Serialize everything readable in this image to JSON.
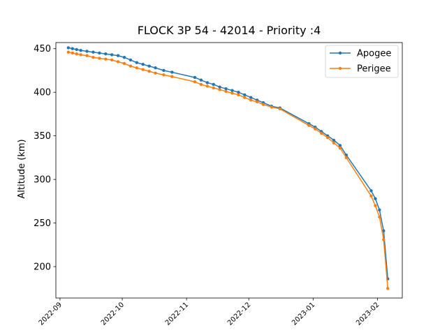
{
  "chart_data": {
    "type": "line",
    "title": "FLOCK 3P 54 - 42014 - Priority :4",
    "xlabel": "",
    "ylabel": "Altitude (km)",
    "xlim": [
      "2022-08-30",
      "2023-02-13"
    ],
    "ylim": [
      164,
      457
    ],
    "x_ticks": [
      "2022-09",
      "2022-10",
      "2022-11",
      "2022-12",
      "2023-01",
      "2023-02"
    ],
    "y_ticks": [
      200,
      250,
      300,
      350,
      400,
      450
    ],
    "legend": "top-right",
    "grid": false,
    "series": [
      {
        "name": "Apogee",
        "color": "#1f77b4",
        "marker": "circle",
        "points": [
          [
            "2022-09-05",
            451
          ],
          [
            "2022-09-07",
            450
          ],
          [
            "2022-09-09",
            449
          ],
          [
            "2022-09-11",
            448
          ],
          [
            "2022-09-14",
            447
          ],
          [
            "2022-09-17",
            446
          ],
          [
            "2022-09-20",
            445
          ],
          [
            "2022-09-23",
            444
          ],
          [
            "2022-09-26",
            443
          ],
          [
            "2022-09-29",
            442
          ],
          [
            "2022-10-02",
            440
          ],
          [
            "2022-10-05",
            437
          ],
          [
            "2022-10-08",
            434
          ],
          [
            "2022-10-11",
            432
          ],
          [
            "2022-10-14",
            430
          ],
          [
            "2022-10-17",
            428
          ],
          [
            "2022-10-21",
            425
          ],
          [
            "2022-10-25",
            423
          ],
          [
            "2022-11-05",
            417
          ],
          [
            "2022-11-08",
            414
          ],
          [
            "2022-11-11",
            411
          ],
          [
            "2022-11-14",
            409
          ],
          [
            "2022-11-17",
            406
          ],
          [
            "2022-11-20",
            404
          ],
          [
            "2022-11-23",
            402
          ],
          [
            "2022-11-26",
            400
          ],
          [
            "2022-11-29",
            397
          ],
          [
            "2022-12-02",
            394
          ],
          [
            "2022-12-05",
            391
          ],
          [
            "2022-12-08",
            388
          ],
          [
            "2022-12-12",
            384
          ],
          [
            "2022-12-16",
            382
          ],
          [
            "2022-12-30",
            364
          ],
          [
            "2023-01-02",
            360
          ],
          [
            "2023-01-05",
            355
          ],
          [
            "2023-01-08",
            350
          ],
          [
            "2023-01-11",
            345
          ],
          [
            "2023-01-14",
            339
          ],
          [
            "2023-01-17",
            328
          ],
          [
            "2023-01-29",
            287
          ],
          [
            "2023-01-31",
            278
          ],
          [
            "2023-02-02",
            265
          ],
          [
            "2023-02-04",
            241
          ],
          [
            "2023-02-06",
            186
          ]
        ]
      },
      {
        "name": "Perigee",
        "color": "#ff7f0e",
        "marker": "circle",
        "points": [
          [
            "2022-09-05",
            446
          ],
          [
            "2022-09-07",
            445
          ],
          [
            "2022-09-09",
            444
          ],
          [
            "2022-09-11",
            443
          ],
          [
            "2022-09-14",
            442
          ],
          [
            "2022-09-17",
            440
          ],
          [
            "2022-09-20",
            439
          ],
          [
            "2022-09-23",
            438
          ],
          [
            "2022-09-26",
            437
          ],
          [
            "2022-09-29",
            435
          ],
          [
            "2022-10-02",
            433
          ],
          [
            "2022-10-05",
            430
          ],
          [
            "2022-10-08",
            428
          ],
          [
            "2022-10-11",
            426
          ],
          [
            "2022-10-14",
            424
          ],
          [
            "2022-10-17",
            422
          ],
          [
            "2022-10-21",
            420
          ],
          [
            "2022-10-25",
            418
          ],
          [
            "2022-11-05",
            412
          ],
          [
            "2022-11-08",
            409
          ],
          [
            "2022-11-11",
            407
          ],
          [
            "2022-11-14",
            405
          ],
          [
            "2022-11-17",
            403
          ],
          [
            "2022-11-20",
            401
          ],
          [
            "2022-11-23",
            399
          ],
          [
            "2022-11-26",
            397
          ],
          [
            "2022-11-29",
            394
          ],
          [
            "2022-12-02",
            391
          ],
          [
            "2022-12-05",
            389
          ],
          [
            "2022-12-08",
            386
          ],
          [
            "2022-12-12",
            383
          ],
          [
            "2022-12-16",
            381
          ],
          [
            "2022-12-30",
            362
          ],
          [
            "2023-01-02",
            358
          ],
          [
            "2023-01-05",
            353
          ],
          [
            "2023-01-08",
            348
          ],
          [
            "2023-01-11",
            342
          ],
          [
            "2023-01-14",
            336
          ],
          [
            "2023-01-17",
            325
          ],
          [
            "2023-01-29",
            281
          ],
          [
            "2023-01-31",
            270
          ],
          [
            "2023-02-02",
            257
          ],
          [
            "2023-02-04",
            231
          ],
          [
            "2023-02-06",
            175
          ]
        ]
      }
    ]
  }
}
